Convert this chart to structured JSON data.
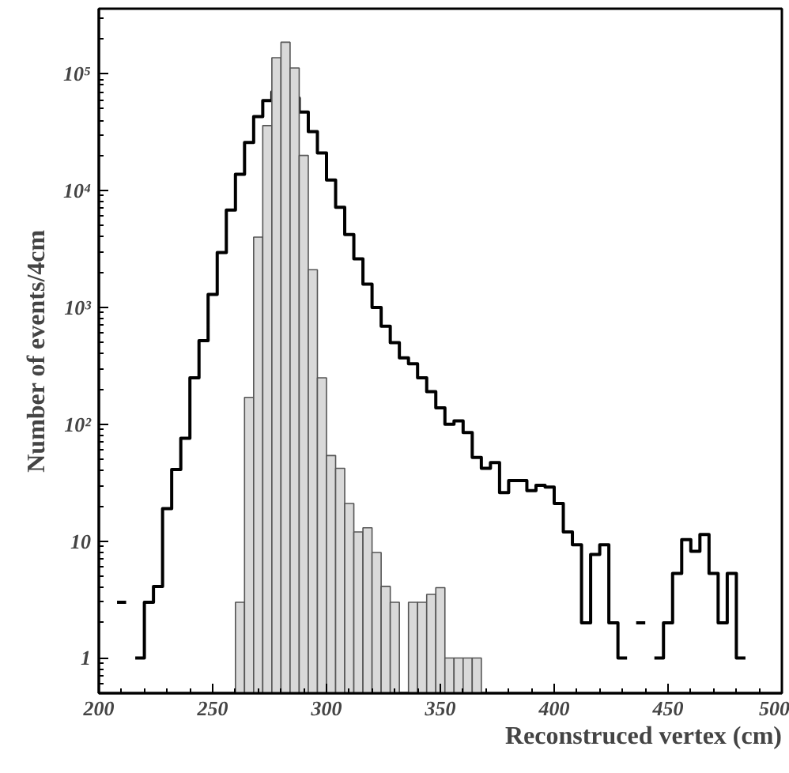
{
  "chart_data": {
    "type": "histogram",
    "xlabel": "Reconstruced vertex (cm)",
    "ylabel": "Number of events/4cm",
    "log": "y",
    "grid": false,
    "bins": [
      200,
      204,
      208,
      212,
      216,
      220,
      224,
      228,
      232,
      236,
      240,
      244,
      248,
      252,
      256,
      260,
      264,
      268,
      272,
      276,
      280,
      284,
      288,
      292,
      296,
      300,
      304,
      308,
      312,
      316,
      320,
      324,
      328,
      332,
      336,
      340,
      344,
      348,
      352,
      356,
      360,
      364,
      368,
      372,
      376,
      380,
      384,
      388,
      392,
      396,
      400,
      404,
      408,
      412,
      416,
      420,
      424,
      428,
      432,
      436,
      440,
      444,
      448,
      452,
      456,
      460,
      464,
      468,
      472,
      476,
      480,
      484,
      488,
      492,
      496,
      500
    ],
    "xlim": [
      200,
      500
    ],
    "xticks": [
      200,
      250,
      300,
      350,
      400,
      450,
      500
    ],
    "ylim": [
      0.5,
      360000
    ],
    "yticks": [
      1,
      10,
      {
        "value": 100,
        "label": "10²"
      },
      {
        "value": 1000,
        "label": "10³"
      },
      {
        "value": 10000,
        "label": "10⁴"
      },
      {
        "value": 100000,
        "label": "10⁵"
      }
    ],
    "series": [
      {
        "type": "step",
        "color": "#000000",
        "x": [
          208,
          212,
          216,
          220,
          224,
          228,
          232,
          236,
          240,
          244,
          248,
          252,
          256,
          260,
          264,
          268,
          272,
          276,
          280,
          284,
          288,
          292,
          296,
          300,
          304,
          308,
          312,
          316,
          320,
          324,
          328,
          332,
          336,
          340,
          344,
          348,
          352,
          356,
          360,
          364,
          368,
          372,
          376,
          380,
          384,
          388,
          392,
          396,
          400,
          404,
          408,
          412,
          416,
          420,
          424,
          428,
          432,
          436,
          440,
          444,
          448,
          452,
          456,
          460,
          464,
          468,
          472,
          476,
          480,
          484
        ],
        "values": [
          3,
          null,
          1,
          3,
          4.1,
          19,
          41,
          76,
          250,
          520,
          1290,
          2950,
          6800,
          13800,
          25800,
          43000,
          59000,
          70000,
          71000,
          62000,
          47000,
          32000,
          21000,
          12300,
          7200,
          4200,
          2600,
          1580,
          1000,
          690,
          500,
          370,
          330,
          250,
          190,
          138,
          100,
          107,
          85,
          52,
          42,
          47,
          26,
          33,
          33,
          27,
          30,
          29,
          21,
          12,
          9.3,
          2,
          7.7,
          9.3,
          2,
          1,
          null,
          2,
          null,
          1,
          2,
          5.3,
          10.3,
          8.2,
          11.4,
          5.3,
          2,
          5.3,
          1,
          1
        ]
      },
      {
        "color": "#d9d9d9",
        "values": [
          null,
          null,
          null,
          null,
          null,
          null,
          null,
          null,
          null,
          null,
          null,
          null,
          null,
          null,
          null,
          3,
          170,
          4000,
          36000,
          137000,
          186000,
          112000,
          20000,
          2100,
          250,
          54,
          42,
          21,
          12,
          13,
          8,
          4.1,
          3,
          null,
          3,
          3,
          3.5,
          4,
          1,
          1,
          1,
          1,
          null,
          null,
          null,
          null,
          null,
          null,
          null,
          null,
          null,
          null,
          null,
          null,
          null,
          null,
          null,
          null,
          null,
          null,
          null,
          null,
          null,
          null,
          null,
          null,
          null,
          null,
          null,
          null,
          null,
          null,
          null,
          null,
          null
        ]
      }
    ]
  }
}
